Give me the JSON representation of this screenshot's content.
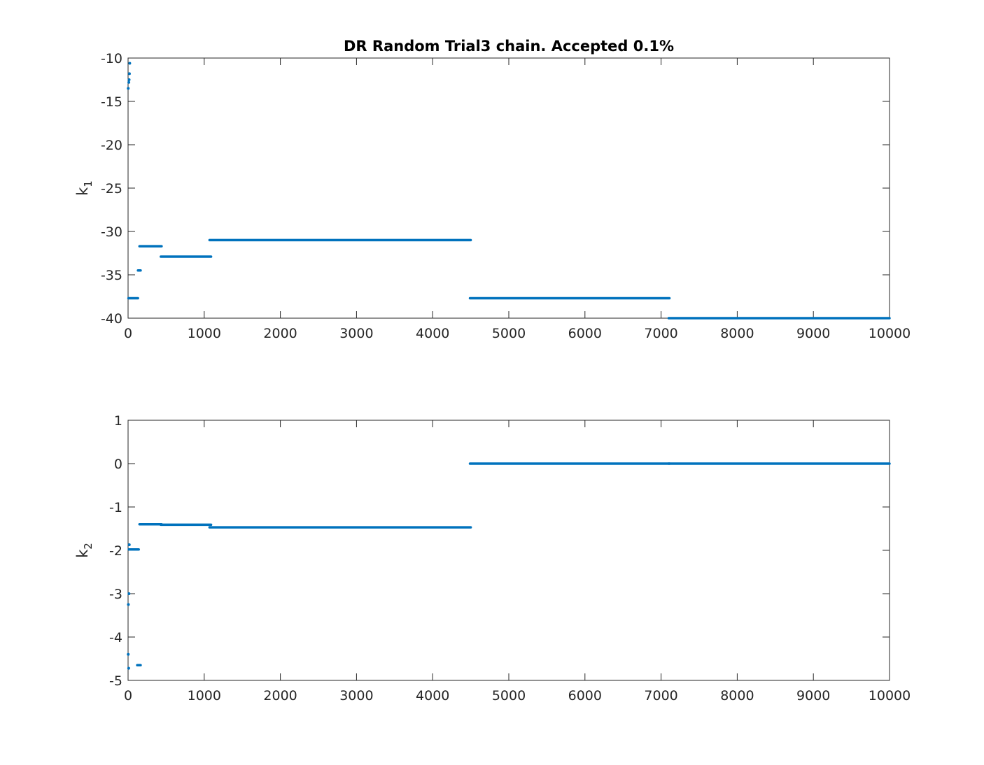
{
  "chart_data": [
    {
      "type": "scatter",
      "title": "DR Random Trial3 chain. Accepted 0.1%",
      "ylabel": "k",
      "ylabel_subscript": "1",
      "xlim": [
        0,
        10000
      ],
      "ylim": [
        -40,
        -10
      ],
      "xticks": [
        0,
        1000,
        2000,
        3000,
        4000,
        5000,
        6000,
        7000,
        8000,
        9000,
        10000
      ],
      "xtick_labels": [
        "0",
        "1000",
        "2000",
        "3000",
        "4000",
        "5000",
        "6000",
        "7000",
        "8000",
        "9000",
        "10000"
      ],
      "yticks": [
        -10,
        -15,
        -20,
        -25,
        -30,
        -35,
        -40
      ],
      "ytick_labels": [
        "-10",
        "-15",
        "-20",
        "-25",
        "-30",
        "-35",
        "-40"
      ],
      "grid": false,
      "series_color": "#0072BD",
      "points": [
        {
          "x": 2,
          "y": -13.5
        },
        {
          "x": 10,
          "y": -12.8
        },
        {
          "x": 14,
          "y": -12.5
        },
        {
          "x": 18,
          "y": -11.8
        },
        {
          "x": 22,
          "y": -10.6
        }
      ],
      "segments": [
        {
          "x0": 5,
          "x1": 130,
          "y": -37.7
        },
        {
          "x0": 130,
          "x1": 165,
          "y": -34.5
        },
        {
          "x0": 150,
          "x1": 440,
          "y": -31.7
        },
        {
          "x0": 430,
          "x1": 1090,
          "y": -32.9
        },
        {
          "x0": 1070,
          "x1": 4500,
          "y": -31.0
        },
        {
          "x0": 4490,
          "x1": 7110,
          "y": -37.7
        },
        {
          "x0": 7100,
          "x1": 10000,
          "y": -40.0
        }
      ]
    },
    {
      "type": "scatter",
      "title": "",
      "ylabel": "k",
      "ylabel_subscript": "2",
      "xlim": [
        0,
        10000
      ],
      "ylim": [
        -5,
        1
      ],
      "xticks": [
        0,
        1000,
        2000,
        3000,
        4000,
        5000,
        6000,
        7000,
        8000,
        9000,
        10000
      ],
      "xtick_labels": [
        "0",
        "1000",
        "2000",
        "3000",
        "4000",
        "5000",
        "6000",
        "7000",
        "8000",
        "9000",
        "10000"
      ],
      "yticks": [
        1,
        0,
        -1,
        -2,
        -3,
        -4,
        -5
      ],
      "ytick_labels": [
        "1",
        "0",
        "-1",
        "-2",
        "-3",
        "-4",
        "-5"
      ],
      "grid": false,
      "series_color": "#0072BD",
      "points": [
        {
          "x": 2,
          "y": -4.4
        },
        {
          "x": 4,
          "y": -3.25
        },
        {
          "x": 8,
          "y": -4.72
        },
        {
          "x": 12,
          "y": -3.0
        },
        {
          "x": 16,
          "y": -1.87
        }
      ],
      "segments": [
        {
          "x0": 10,
          "x1": 140,
          "y": -1.98
        },
        {
          "x0": 120,
          "x1": 165,
          "y": -4.65
        },
        {
          "x0": 150,
          "x1": 440,
          "y": -1.4
        },
        {
          "x0": 430,
          "x1": 1090,
          "y": -1.41
        },
        {
          "x0": 1070,
          "x1": 4500,
          "y": -1.47
        },
        {
          "x0": 4490,
          "x1": 7110,
          "y": 0.0
        },
        {
          "x0": 7100,
          "x1": 10000,
          "y": 0.0
        }
      ]
    }
  ]
}
